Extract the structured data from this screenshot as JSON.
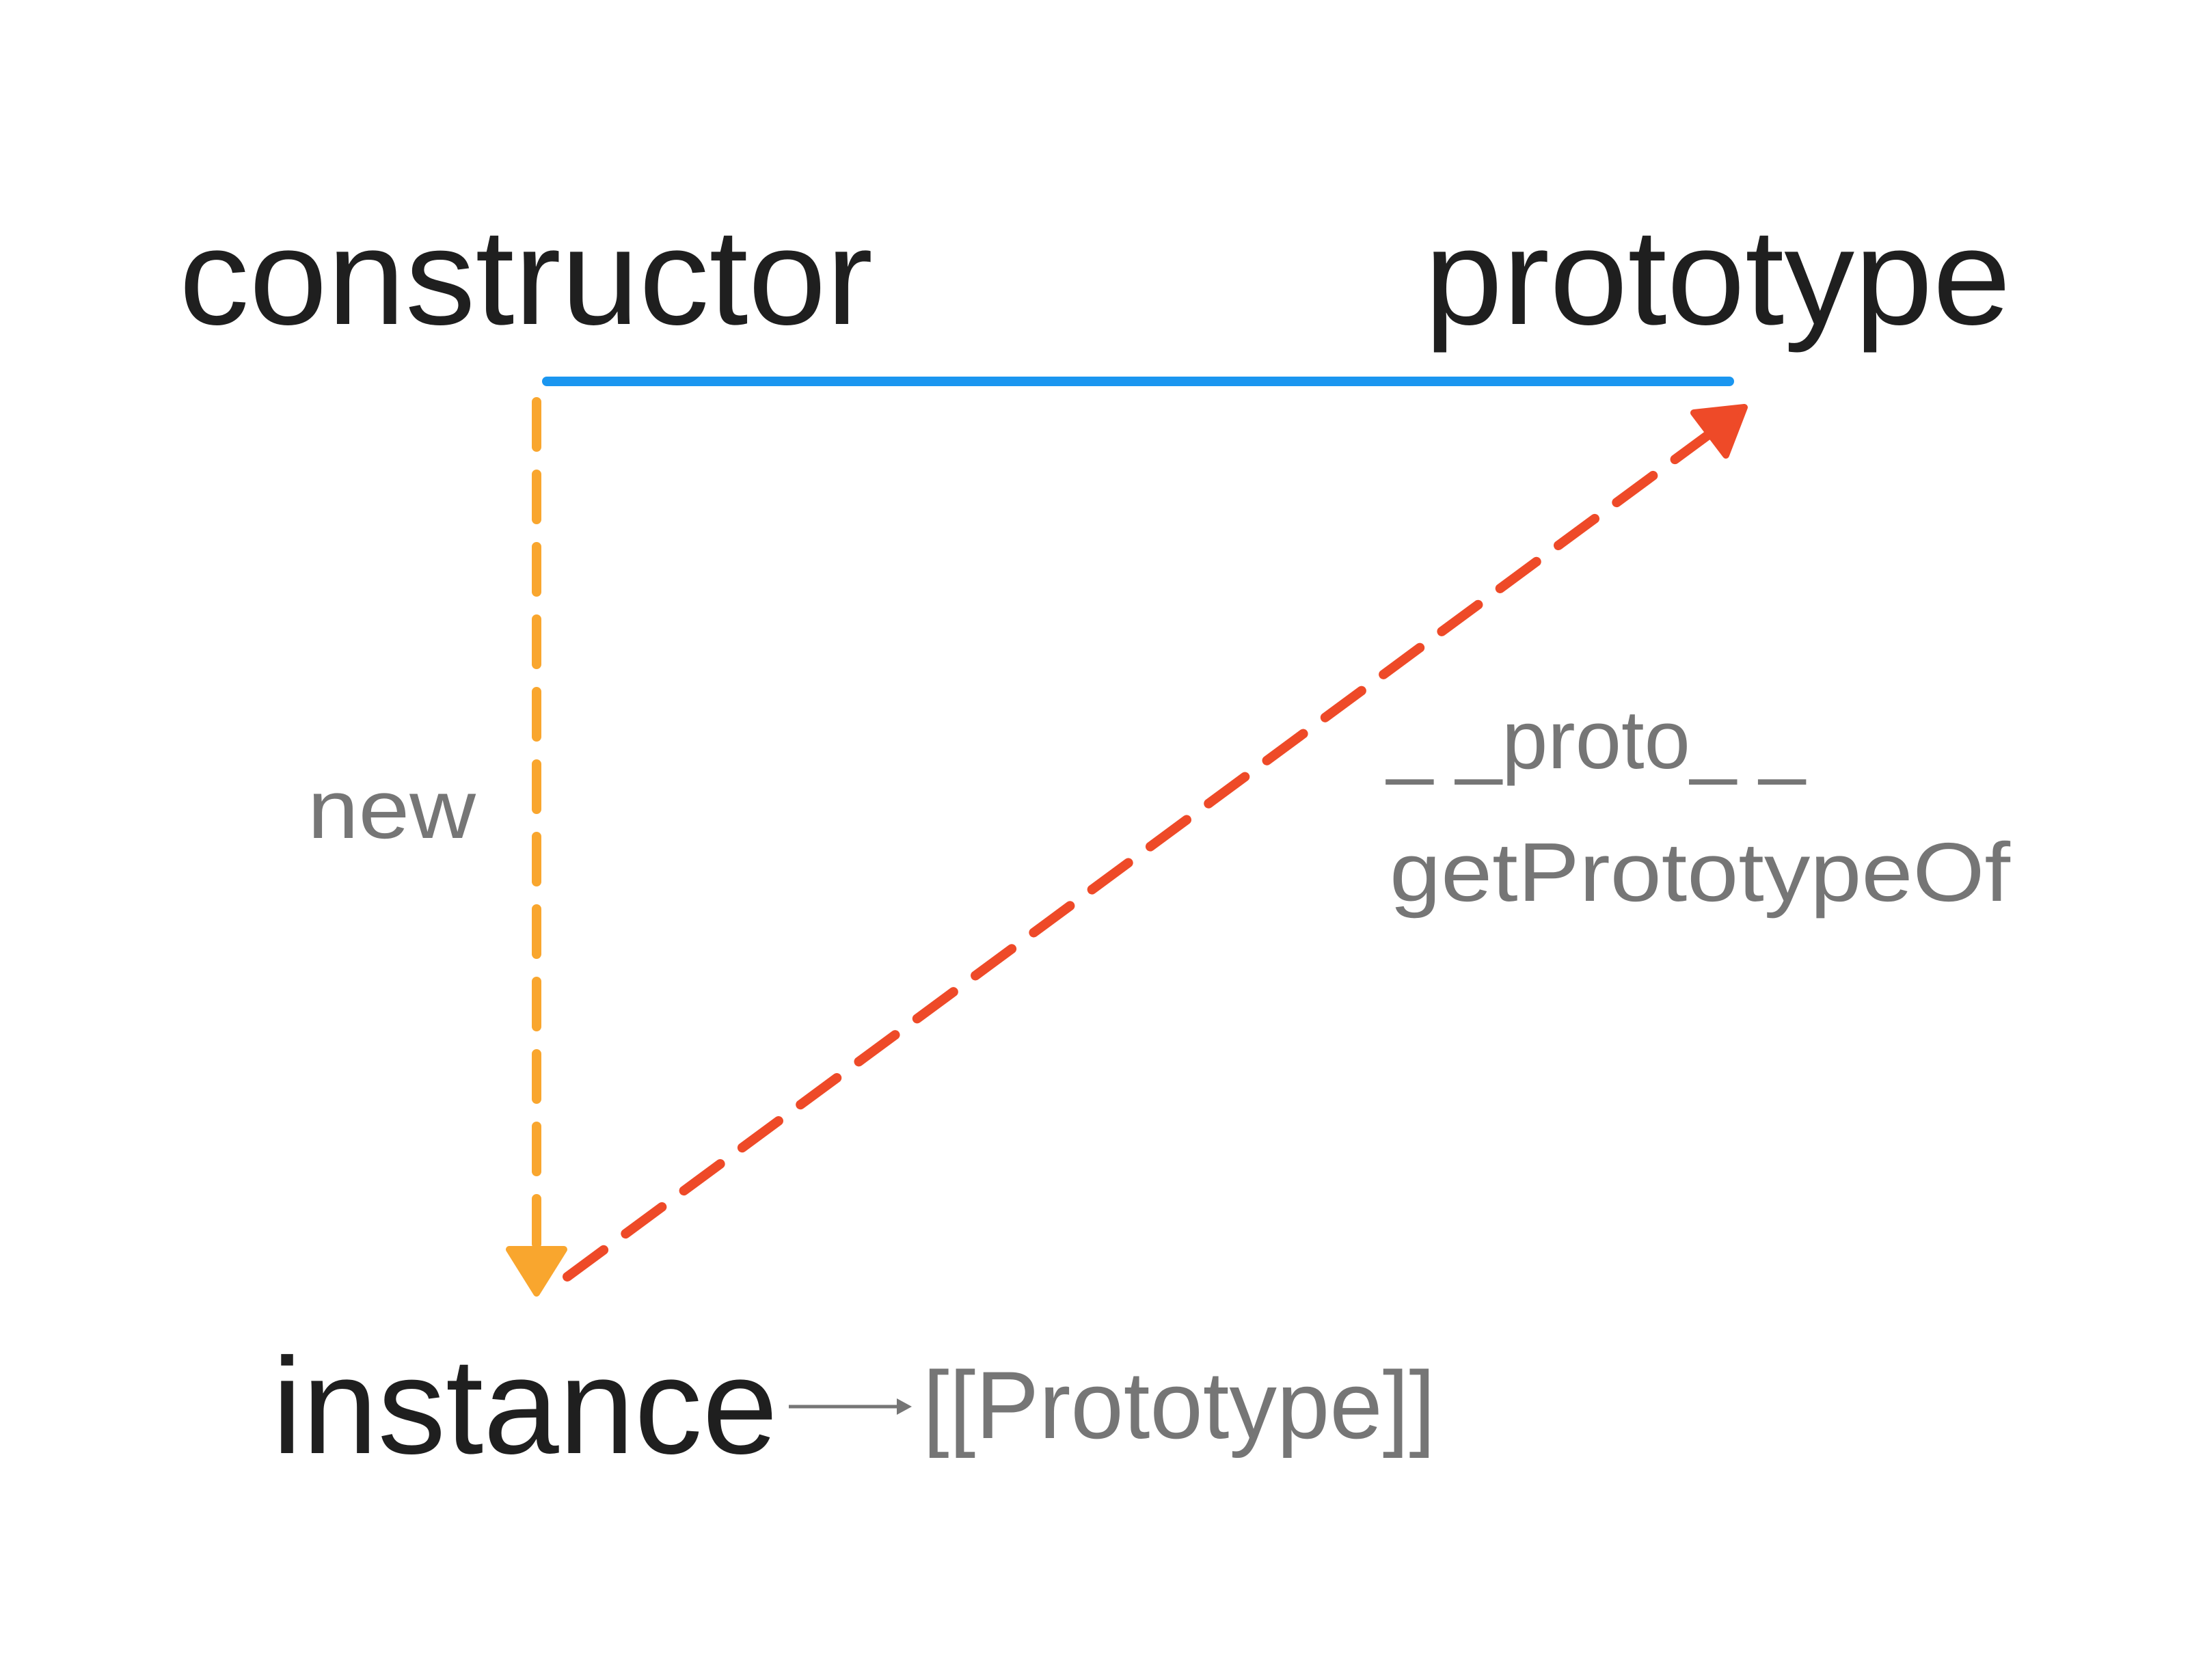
{
  "nodes": [
    {
      "label": "constructor"
    },
    {
      "label": "prototype"
    },
    {
      "label": "instance"
    }
  ],
  "edges": [
    {
      "label": "new"
    },
    {
      "label": "_ _proto_ _",
      "sublabel": "getPrototypeOf"
    },
    {
      "label": "[[Prototype]]"
    }
  ]
}
